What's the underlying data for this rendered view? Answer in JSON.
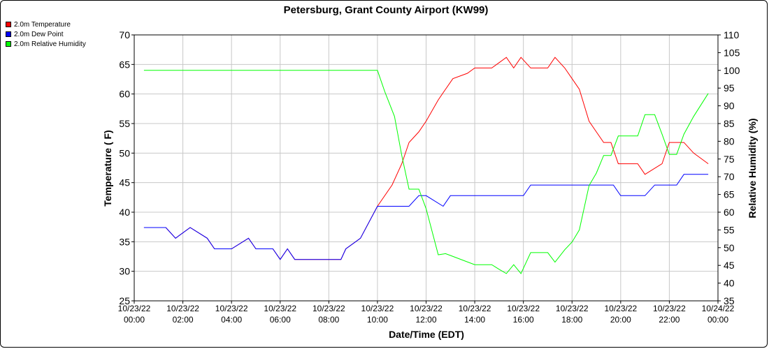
{
  "chart_data": {
    "type": "line",
    "title": "Petersburg, Grant County Airport (KW99)",
    "xlabel": "Date/Time (EDT)",
    "ylabel": "Temperature ( F)",
    "y2label": "Relative Humidity (%)",
    "xlim_hours": [
      0,
      24
    ],
    "ylim": [
      25,
      70
    ],
    "y2lim": [
      35,
      110
    ],
    "yticks": [
      25,
      30,
      35,
      40,
      45,
      50,
      55,
      60,
      65,
      70
    ],
    "y2ticks": [
      35,
      40,
      45,
      50,
      55,
      60,
      65,
      70,
      75,
      80,
      85,
      90,
      95,
      100,
      105,
      110
    ],
    "xticks": [
      {
        "h": 0,
        "date": "10/23/22",
        "time": "00:00"
      },
      {
        "h": 2,
        "date": "10/23/22",
        "time": "02:00"
      },
      {
        "h": 4,
        "date": "10/23/22",
        "time": "04:00"
      },
      {
        "h": 6,
        "date": "10/23/22",
        "time": "06:00"
      },
      {
        "h": 8,
        "date": "10/23/22",
        "time": "08:00"
      },
      {
        "h": 10,
        "date": "10/23/22",
        "time": "10:00"
      },
      {
        "h": 12,
        "date": "10/23/22",
        "time": "12:00"
      },
      {
        "h": 14,
        "date": "10/23/22",
        "time": "14:00"
      },
      {
        "h": 16,
        "date": "10/23/22",
        "time": "16:00"
      },
      {
        "h": 18,
        "date": "10/23/22",
        "time": "18:00"
      },
      {
        "h": 20,
        "date": "10/23/22",
        "time": "20:00"
      },
      {
        "h": 22,
        "date": "10/23/22",
        "time": "22:00"
      },
      {
        "h": 24,
        "date": "10/24/22",
        "time": "00:00"
      }
    ],
    "grid": true,
    "legend_position": "top-left",
    "series": [
      {
        "name": "2.0m Temperature",
        "color": "#ff0000",
        "axis": "left",
        "points": [
          [
            0.4,
            37.4
          ],
          [
            1.3,
            37.4
          ],
          [
            1.7,
            35.6
          ],
          [
            2.3,
            37.4
          ],
          [
            3.0,
            35.6
          ],
          [
            3.3,
            33.8
          ],
          [
            4.0,
            33.8
          ],
          [
            4.7,
            35.6
          ],
          [
            5.0,
            33.8
          ],
          [
            5.7,
            33.8
          ],
          [
            6.0,
            32.0
          ],
          [
            6.3,
            33.8
          ],
          [
            6.6,
            32.0
          ],
          [
            7.3,
            32.0
          ],
          [
            8.0,
            32.0
          ],
          [
            8.5,
            32.0
          ],
          [
            8.7,
            33.8
          ],
          [
            9.3,
            35.6
          ],
          [
            10.0,
            41.0
          ],
          [
            10.6,
            44.6
          ],
          [
            11.0,
            48.2
          ],
          [
            11.3,
            51.8
          ],
          [
            11.7,
            53.6
          ],
          [
            12.0,
            55.4
          ],
          [
            12.5,
            59.0
          ],
          [
            12.8,
            60.8
          ],
          [
            13.1,
            62.6
          ],
          [
            13.7,
            63.5
          ],
          [
            14.0,
            64.4
          ],
          [
            14.7,
            64.4
          ],
          [
            15.0,
            65.3
          ],
          [
            15.3,
            66.2
          ],
          [
            15.6,
            64.4
          ],
          [
            15.9,
            66.2
          ],
          [
            16.3,
            64.4
          ],
          [
            17.0,
            64.4
          ],
          [
            17.3,
            66.2
          ],
          [
            17.7,
            64.4
          ],
          [
            18.0,
            62.6
          ],
          [
            18.3,
            60.8
          ],
          [
            18.7,
            55.4
          ],
          [
            19.0,
            53.6
          ],
          [
            19.3,
            51.8
          ],
          [
            19.6,
            51.8
          ],
          [
            19.9,
            48.2
          ],
          [
            20.7,
            48.2
          ],
          [
            21.0,
            46.4
          ],
          [
            21.7,
            48.2
          ],
          [
            22.0,
            51.8
          ],
          [
            22.6,
            51.8
          ],
          [
            23.0,
            50.0
          ],
          [
            23.6,
            48.2
          ]
        ]
      },
      {
        "name": "2.0m Dew Point",
        "color": "#0000ff",
        "axis": "left",
        "points": [
          [
            0.4,
            37.4
          ],
          [
            1.3,
            37.4
          ],
          [
            1.7,
            35.6
          ],
          [
            2.3,
            37.4
          ],
          [
            3.0,
            35.6
          ],
          [
            3.3,
            33.8
          ],
          [
            4.0,
            33.8
          ],
          [
            4.7,
            35.6
          ],
          [
            5.0,
            33.8
          ],
          [
            5.7,
            33.8
          ],
          [
            6.0,
            32.0
          ],
          [
            6.3,
            33.8
          ],
          [
            6.6,
            32.0
          ],
          [
            7.3,
            32.0
          ],
          [
            8.0,
            32.0
          ],
          [
            8.5,
            32.0
          ],
          [
            8.7,
            33.8
          ],
          [
            9.3,
            35.6
          ],
          [
            10.0,
            41.0
          ],
          [
            11.3,
            41.0
          ],
          [
            11.7,
            42.8
          ],
          [
            12.0,
            42.8
          ],
          [
            12.7,
            41.0
          ],
          [
            13.0,
            42.8
          ],
          [
            14.0,
            42.8
          ],
          [
            15.0,
            42.8
          ],
          [
            16.0,
            42.8
          ],
          [
            16.3,
            44.6
          ],
          [
            17.0,
            44.6
          ],
          [
            18.0,
            44.6
          ],
          [
            19.0,
            44.6
          ],
          [
            19.7,
            44.6
          ],
          [
            20.0,
            42.8
          ],
          [
            20.7,
            42.8
          ],
          [
            21.0,
            42.8
          ],
          [
            21.4,
            44.6
          ],
          [
            22.0,
            44.6
          ],
          [
            22.3,
            44.6
          ],
          [
            22.6,
            46.4
          ],
          [
            23.0,
            46.4
          ],
          [
            23.6,
            46.4
          ]
        ]
      },
      {
        "name": "2.0m Relative Humidity",
        "color": "#00ff00",
        "axis": "right",
        "points": [
          [
            0.4,
            100
          ],
          [
            2.0,
            100
          ],
          [
            4.0,
            100
          ],
          [
            6.0,
            100
          ],
          [
            8.0,
            100
          ],
          [
            9.3,
            100
          ],
          [
            10.0,
            100
          ],
          [
            10.3,
            94
          ],
          [
            10.7,
            87
          ],
          [
            11.0,
            76
          ],
          [
            11.3,
            66.5
          ],
          [
            11.7,
            66.5
          ],
          [
            12.0,
            61
          ],
          [
            12.5,
            48
          ],
          [
            12.8,
            48.3
          ],
          [
            13.0,
            47.8
          ],
          [
            13.5,
            46.5
          ],
          [
            14.0,
            45.2
          ],
          [
            14.7,
            45.2
          ],
          [
            15.0,
            43.9
          ],
          [
            15.3,
            42.7
          ],
          [
            15.6,
            45.2
          ],
          [
            15.9,
            42.7
          ],
          [
            16.3,
            48.6
          ],
          [
            16.6,
            48.6
          ],
          [
            17.0,
            48.6
          ],
          [
            17.3,
            45.9
          ],
          [
            17.7,
            49.4
          ],
          [
            18.0,
            51.6
          ],
          [
            18.3,
            55
          ],
          [
            18.7,
            67.5
          ],
          [
            19.0,
            71
          ],
          [
            19.3,
            76
          ],
          [
            19.6,
            76
          ],
          [
            19.9,
            81.5
          ],
          [
            20.3,
            81.5
          ],
          [
            20.7,
            81.5
          ],
          [
            21.0,
            87.5
          ],
          [
            21.4,
            87.5
          ],
          [
            21.7,
            82
          ],
          [
            22.0,
            76.3
          ],
          [
            22.3,
            76.3
          ],
          [
            22.6,
            82
          ],
          [
            23.0,
            87
          ],
          [
            23.6,
            93.5
          ]
        ]
      }
    ]
  }
}
